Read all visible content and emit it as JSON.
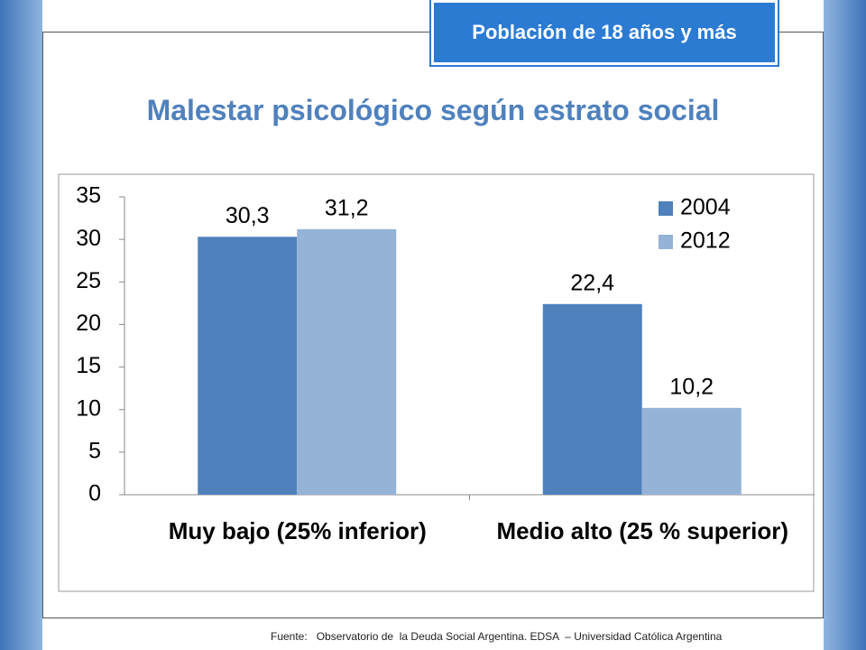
{
  "badge": "Población de 18 años y más",
  "footer": "Fuente:   Observatorio de  la Deuda Social Argentina. EDSA  – Universidad Católica Argentina",
  "chart_data": {
    "type": "bar",
    "title": "Malestar psicológico según estrato social",
    "categories": [
      "Muy bajo (25% inferior)",
      "Medio alto (25 % superior)"
    ],
    "series": [
      {
        "name": "2004",
        "color": "#4f81bd",
        "values": [
          30.3,
          22.4
        ],
        "value_labels": [
          "30,3",
          "22,4"
        ]
      },
      {
        "name": "2012",
        "color": "#95b3d7",
        "values": [
          31.2,
          10.2
        ],
        "value_labels": [
          "31,2",
          "10,2"
        ]
      }
    ],
    "ylim": [
      0,
      35
    ],
    "yticks": [
      0,
      5,
      10,
      15,
      20,
      25,
      30,
      35
    ],
    "legend": "upper right",
    "grid": false
  }
}
